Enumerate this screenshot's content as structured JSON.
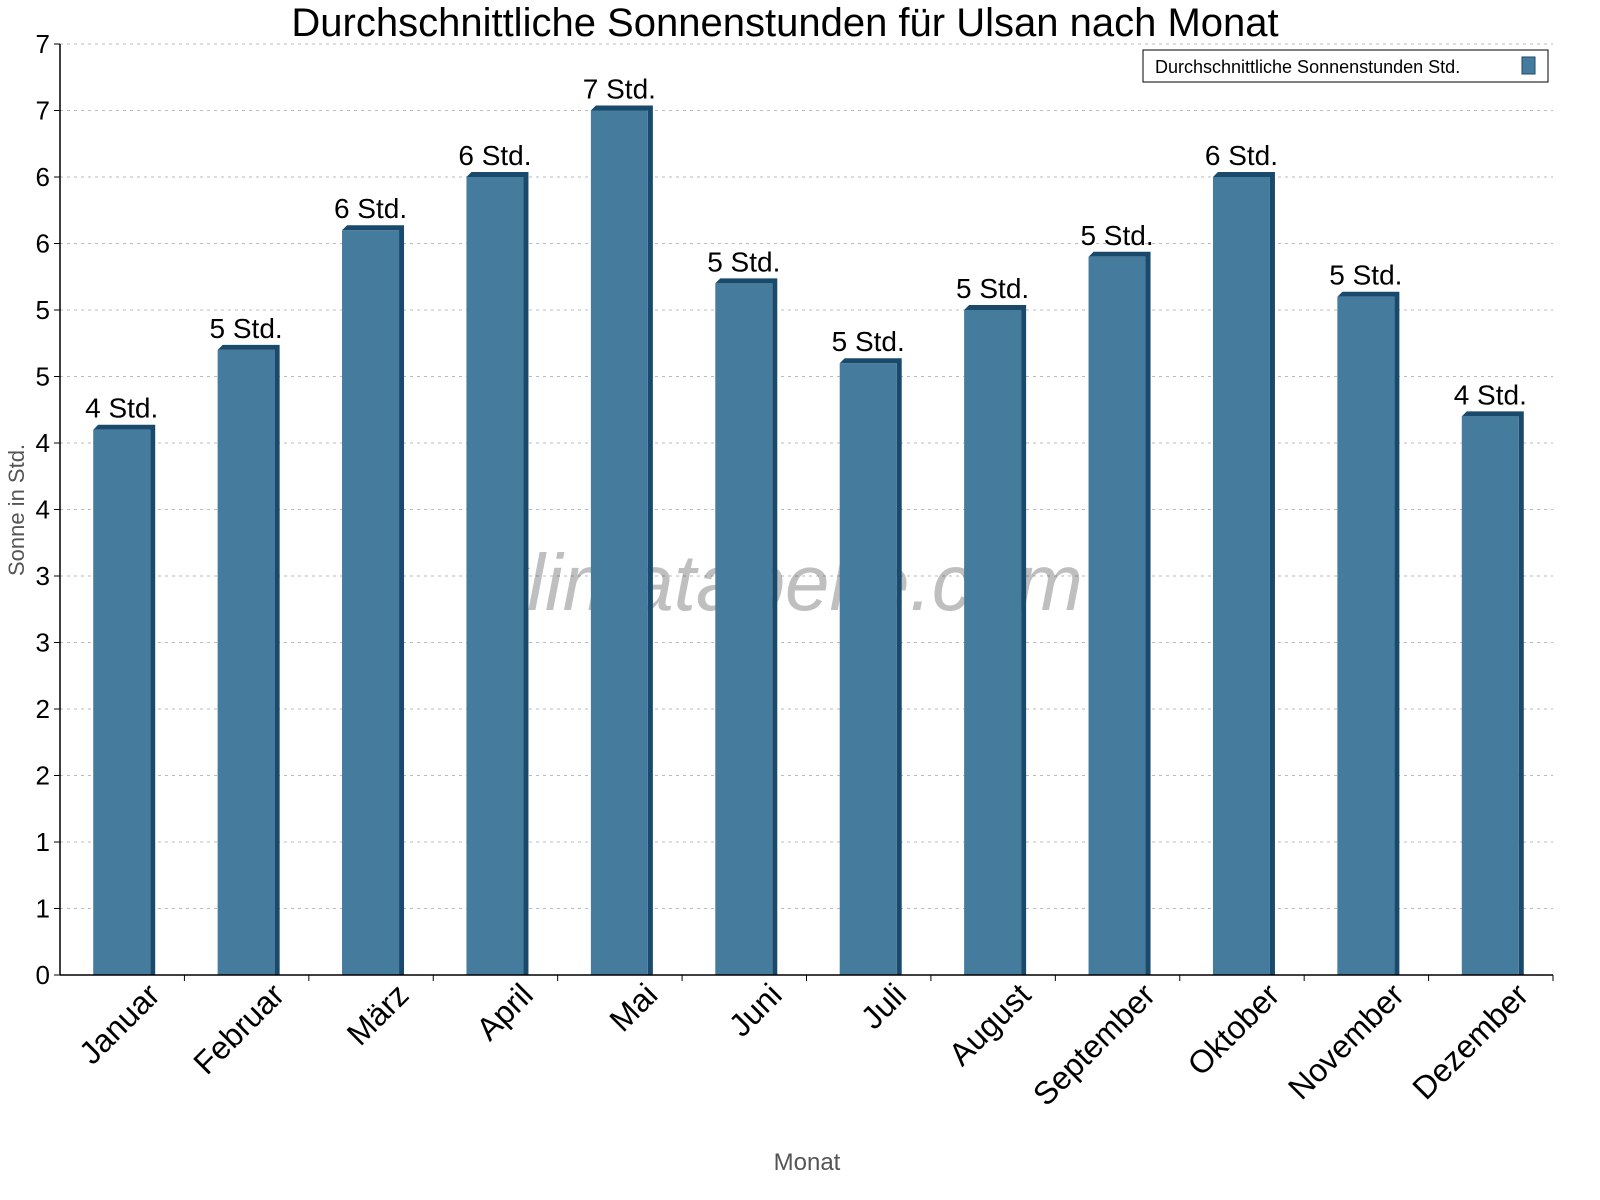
{
  "chart_data": {
    "type": "bar",
    "title": "Durchschnittliche Sonnenstunden für Ulsan nach Monat",
    "xlabel": "Monat",
    "ylabel": "Sonne in Std.",
    "ylim": [
      0,
      7
    ],
    "yticks": [
      0,
      0.5,
      1,
      1.5,
      2,
      2.5,
      3,
      3.5,
      4,
      4.5,
      5,
      5.5,
      6,
      6.5,
      7
    ],
    "ytick_labels": [
      "0",
      "1",
      "1",
      "2",
      "2",
      "3",
      "3",
      "4",
      "4",
      "5",
      "5",
      "6",
      "6",
      "7",
      "7"
    ],
    "grid": true,
    "legend_position": "top-right",
    "categories": [
      "Januar",
      "Februar",
      "März",
      "April",
      "Mai",
      "Juni",
      "Juli",
      "August",
      "September",
      "Oktober",
      "November",
      "Dezember"
    ],
    "series": [
      {
        "name": "Durchschnittliche Sonnenstunden Std.",
        "values": [
          4.1,
          4.7,
          5.6,
          6.0,
          6.5,
          5.2,
          4.6,
          5.0,
          5.4,
          6.0,
          5.1,
          4.2
        ],
        "data_labels": [
          "4 Std.",
          "5 Std.",
          "6 Std.",
          "6 Std.",
          "7 Std.",
          "5 Std.",
          "5 Std.",
          "5 Std.",
          "5 Std.",
          "6 Std.",
          "5 Std.",
          "4 Std."
        ],
        "color": "#457b9d",
        "side_color": "#1a4a6b"
      }
    ],
    "watermark": "klimatabelle.com"
  }
}
